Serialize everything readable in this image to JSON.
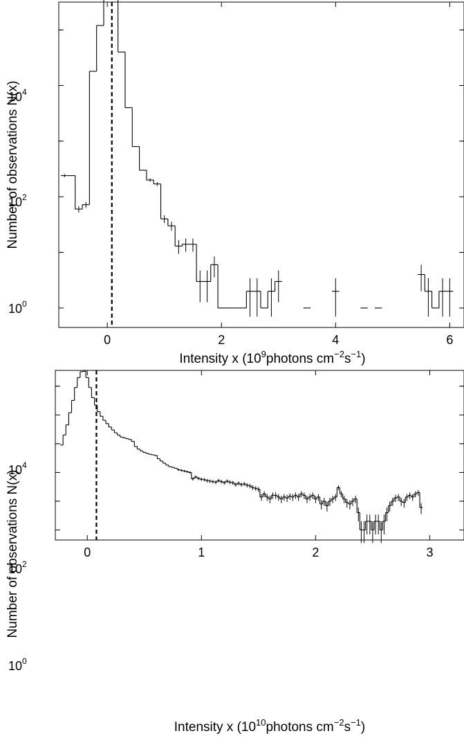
{
  "chart_data": [
    {
      "type": "histogram",
      "xlabel": "Intensity x",
      "xlabel_unit_text": "(10",
      "xlabel_unit_exp": "9",
      "xlabel_unit_rest": "photons cm",
      "xlabel_unit_exp2": "−2",
      "xlabel_unit_s": "s",
      "xlabel_unit_exp3": "−1",
      "xlabel_close": ")",
      "ylabel": "Number of observations N(x)",
      "xlim": [
        -0.85,
        6.25
      ],
      "ylim_log10": [
        -0.35,
        5.5
      ],
      "xticks": [
        0,
        2,
        4,
        6
      ],
      "xtick_labels": [
        "0",
        "2",
        "4",
        "6"
      ],
      "yticks_log10": [
        0,
        2,
        4
      ],
      "ytick_base": "10",
      "ytick_exps": [
        "0",
        "2",
        "4"
      ],
      "y_scale": "log",
      "dashed_line_x": 0.08,
      "bin_width": 0.125,
      "bins": [
        {
          "x": -0.75,
          "y": 240,
          "err": true
        },
        {
          "x": -0.625,
          "y": 240,
          "err": false
        },
        {
          "x": -0.5,
          "y": 60,
          "err": true
        },
        {
          "x": -0.375,
          "y": 72,
          "err": true
        },
        {
          "x": -0.25,
          "y": 18000,
          "err": false
        },
        {
          "x": -0.125,
          "y": 120000,
          "err": false
        },
        {
          "x": 0.0,
          "y": 350000,
          "err": false
        },
        {
          "x": 0.125,
          "y": 360000,
          "err": false
        },
        {
          "x": 0.25,
          "y": 40000,
          "err": false
        },
        {
          "x": 0.375,
          "y": 4000,
          "err": false
        },
        {
          "x": 0.5,
          "y": 800,
          "err": false
        },
        {
          "x": 0.625,
          "y": 300,
          "err": false
        },
        {
          "x": 0.75,
          "y": 200,
          "err": true
        },
        {
          "x": 0.875,
          "y": 170,
          "err": true
        },
        {
          "x": 1.0,
          "y": 40,
          "err": true
        },
        {
          "x": 1.125,
          "y": 30,
          "err": true
        },
        {
          "x": 1.25,
          "y": 13,
          "err": true
        },
        {
          "x": 1.375,
          "y": 14,
          "err": true
        },
        {
          "x": 1.5,
          "y": 14,
          "err": true
        },
        {
          "x": 1.625,
          "y": 3,
          "err": true
        },
        {
          "x": 1.75,
          "y": 3,
          "err": true
        },
        {
          "x": 1.875,
          "y": 6,
          "err": true
        },
        {
          "x": 2.0,
          "y": 1,
          "err": false
        },
        {
          "x": 2.125,
          "y": 1,
          "err": false
        },
        {
          "x": 2.25,
          "y": 1,
          "err": false
        },
        {
          "x": 2.375,
          "y": 1,
          "err": false
        },
        {
          "x": 2.5,
          "y": 2,
          "err": true
        },
        {
          "x": 2.625,
          "y": 2,
          "err": true
        },
        {
          "x": 2.75,
          "y": 1,
          "err": false
        },
        {
          "x": 2.875,
          "y": 2,
          "err": true
        },
        {
          "x": 3.0,
          "y": 3,
          "err": true
        },
        {
          "x": 3.125,
          "y": null,
          "err": false
        },
        {
          "x": 3.25,
          "y": null,
          "err": false
        },
        {
          "x": 3.375,
          "y": null,
          "err": false
        },
        {
          "x": 3.5,
          "y": 1,
          "err": false
        },
        {
          "x": 3.625,
          "y": null,
          "err": false
        },
        {
          "x": 3.75,
          "y": null,
          "err": false
        },
        {
          "x": 3.875,
          "y": null,
          "err": false
        },
        {
          "x": 4.0,
          "y": 2,
          "err": true
        },
        {
          "x": 4.125,
          "y": null,
          "err": false
        },
        {
          "x": 4.25,
          "y": null,
          "err": false
        },
        {
          "x": 4.375,
          "y": null,
          "err": false
        },
        {
          "x": 4.5,
          "y": 1,
          "err": false
        },
        {
          "x": 4.625,
          "y": null,
          "err": false
        },
        {
          "x": 4.75,
          "y": 1,
          "err": false
        },
        {
          "x": 4.875,
          "y": null,
          "err": false
        },
        {
          "x": 5.0,
          "y": null,
          "err": false
        },
        {
          "x": 5.125,
          "y": null,
          "err": false
        },
        {
          "x": 5.25,
          "y": null,
          "err": false
        },
        {
          "x": 5.375,
          "y": null,
          "err": false
        },
        {
          "x": 5.5,
          "y": 4,
          "err": true
        },
        {
          "x": 5.625,
          "y": 2,
          "err": true
        },
        {
          "x": 5.75,
          "y": 1,
          "err": false
        },
        {
          "x": 5.875,
          "y": 2,
          "err": true
        },
        {
          "x": 6.0,
          "y": 2,
          "err": true
        }
      ]
    },
    {
      "type": "histogram",
      "xlabel": "Intensity x",
      "xlabel_unit_text": "(10",
      "xlabel_unit_exp": "10",
      "xlabel_unit_rest": "photons cm",
      "xlabel_unit_exp2": "−2",
      "xlabel_unit_s": "s",
      "xlabel_unit_exp3": "−1",
      "xlabel_close": ")",
      "ylabel": "Number of observations N(x)",
      "xlim": [
        -0.28,
        3.3
      ],
      "ylim_log10": [
        -0.35,
        5.55
      ],
      "xticks": [
        0,
        1,
        2,
        3
      ],
      "xtick_labels": [
        "0",
        "1",
        "2",
        "3"
      ],
      "yticks_log10": [
        0,
        2,
        4
      ],
      "ytick_base": "10",
      "ytick_exps": [
        "0",
        "2",
        "4"
      ],
      "y_scale": "log",
      "dashed_line_x": 0.08,
      "bin_width": 0.025,
      "bins_start": -0.225,
      "bin_counts": [
        900,
        2000,
        4500,
        12000,
        32000,
        90000,
        200000,
        320000,
        330000,
        200000,
        90000,
        40000,
        22000,
        13000,
        9000,
        6500,
        5000,
        3800,
        3000,
        2400,
        2000,
        1700,
        1600,
        1500,
        1400,
        1200,
        800,
        650,
        560,
        500,
        460,
        430,
        410,
        390,
        300,
        250,
        210,
        180,
        160,
        150,
        140,
        125,
        118,
        112,
        106,
        100,
        60,
        70,
        62,
        58,
        56,
        52,
        50,
        48,
        46,
        52,
        48,
        44,
        50,
        46,
        44,
        38,
        42,
        38,
        40,
        36,
        34,
        30,
        28,
        26,
        14,
        18,
        14,
        12,
        16,
        16,
        14,
        12,
        14,
        13,
        15,
        14,
        16,
        14,
        18,
        16,
        12,
        14,
        16,
        12,
        14,
        8,
        10,
        7,
        10,
        12,
        14,
        30,
        18,
        12,
        9,
        8,
        10,
        12,
        4,
        1,
        1,
        2,
        2,
        1,
        2,
        2,
        1,
        2,
        4,
        7,
        10,
        13,
        14,
        10,
        9,
        14,
        16,
        14,
        18,
        20,
        6
      ]
    }
  ]
}
